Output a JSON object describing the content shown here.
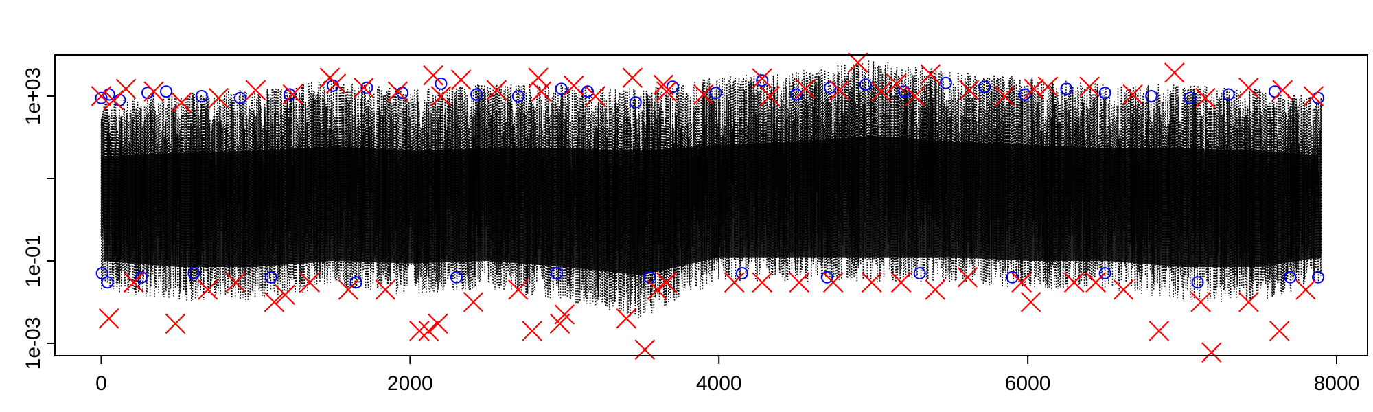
{
  "chart_data": {
    "type": "scatter",
    "title": "",
    "xlabel": "",
    "ylabel": "",
    "x_scale": "linear",
    "y_scale": "log",
    "xlim": [
      -300,
      8200
    ],
    "ylim": [
      0.0005,
      10000
    ],
    "x_ticks": [
      0,
      2000,
      4000,
      6000,
      8000
    ],
    "x_tick_labels": [
      "0",
      "2000",
      "4000",
      "6000",
      "8000"
    ],
    "y_ticks": [
      0.001,
      0.1,
      1000
    ],
    "y_tick_labels": [
      "1e-03",
      "1e-01",
      "1e+03"
    ],
    "y_minor_ticks": [
      10
    ],
    "grid": false,
    "legend": "none",
    "n_points": 7900,
    "series": [
      {
        "name": "",
        "style": "dotted vertical segments",
        "color": "#000000",
        "x": [
          0,
          500,
          1000,
          1500,
          2000,
          2500,
          3000,
          3500,
          4000,
          4500,
          5000,
          5500,
          6000,
          6500,
          7000,
          7500,
          7900
        ],
        "y_low": [
          0.02,
          0.01,
          0.01,
          0.02,
          0.015,
          0.02,
          0.01,
          0.004,
          0.03,
          0.03,
          0.03,
          0.03,
          0.02,
          0.02,
          0.01,
          0.01,
          0.03
        ],
        "y_high": [
          800,
          1200,
          1500,
          2500,
          1500,
          2000,
          2000,
          1500,
          3000,
          4000,
          8000,
          4000,
          3000,
          2000,
          2000,
          1500,
          900
        ]
      },
      {
        "name": "",
        "style": "open circles",
        "color": "#0000ff",
        "x": [
          0,
          50,
          120,
          300,
          420,
          650,
          900,
          1220,
          1500,
          1720,
          1950,
          2200,
          2430,
          2700,
          2980,
          3150,
          3460,
          3700,
          3980,
          4280,
          4500,
          4720,
          4950,
          5200,
          5470,
          5720,
          5980,
          6250,
          6500,
          6800,
          7050,
          7300,
          7600,
          7880,
          5,
          40,
          260,
          600,
          1100,
          1650,
          2300,
          2950,
          3550,
          4150,
          4700,
          5300,
          5900,
          6500,
          7100,
          7700,
          7880
        ],
        "y": [
          900,
          1100,
          800,
          1200,
          1300,
          1000,
          900,
          1100,
          1800,
          1600,
          1200,
          2000,
          1100,
          1000,
          1500,
          1300,
          700,
          1700,
          1200,
          2400,
          1100,
          1600,
          1900,
          1300,
          2100,
          1700,
          1100,
          1500,
          1200,
          1000,
          900,
          1100,
          1300,
          900,
          0.05,
          0.03,
          0.04,
          0.05,
          0.04,
          0.03,
          0.04,
          0.05,
          0.04,
          0.05,
          0.04,
          0.05,
          0.04,
          0.05,
          0.03,
          0.04,
          0.04
        ]
      },
      {
        "name": "",
        "style": "crosses",
        "color": "#ff0000",
        "x": [
          0,
          80,
          160,
          340,
          520,
          760,
          1000,
          1240,
          1480,
          1520,
          1700,
          1920,
          2150,
          2200,
          2330,
          2560,
          2830,
          2850,
          3060,
          3200,
          3440,
          3640,
          3660,
          3900,
          4280,
          4330,
          4560,
          4780,
          4900,
          5050,
          5150,
          5270,
          5370,
          5620,
          5850,
          6040,
          6130,
          6400,
          6680,
          6950,
          7150,
          7430,
          7650,
          7850,
          50,
          210,
          480,
          690,
          870,
          1120,
          1190,
          1350,
          1600,
          1840,
          2060,
          2120,
          2180,
          2410,
          2700,
          2790,
          2970,
          3000,
          3400,
          3520,
          3600,
          3660,
          4100,
          4280,
          4520,
          4740,
          4990,
          5180,
          5400,
          5610,
          5960,
          6020,
          6300,
          6440,
          6620,
          6850,
          7120,
          7190,
          7430,
          7630,
          7800
        ],
        "y": [
          1000,
          800,
          1500,
          1300,
          700,
          900,
          1400,
          1100,
          2800,
          2000,
          1600,
          1300,
          3200,
          1000,
          2500,
          1400,
          2800,
          1300,
          1800,
          1000,
          2800,
          1900,
          1300,
          1100,
          2700,
          1000,
          1500,
          1400,
          6500,
          1300,
          2000,
          1000,
          3400,
          1400,
          1000,
          1500,
          1700,
          1700,
          1100,
          3700,
          900,
          1600,
          1400,
          1000,
          0.004,
          0.03,
          0.003,
          0.02,
          0.03,
          0.01,
          0.015,
          0.03,
          0.02,
          0.02,
          0.002,
          0.002,
          0.003,
          0.01,
          0.02,
          0.002,
          0.003,
          0.005,
          0.004,
          0.0007,
          0.02,
          0.03,
          0.03,
          0.03,
          0.03,
          0.03,
          0.03,
          0.03,
          0.02,
          0.04,
          0.03,
          0.01,
          0.03,
          0.03,
          0.02,
          0.002,
          0.01,
          0.0006,
          0.01,
          0.002,
          0.02
        ]
      }
    ]
  }
}
